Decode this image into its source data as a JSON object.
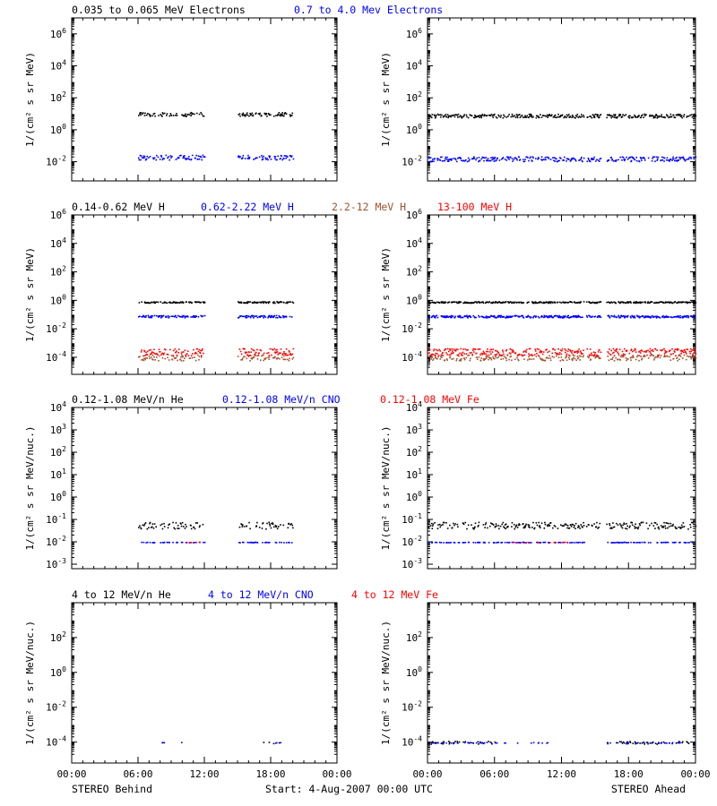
{
  "colors": {
    "black": "#000000",
    "blue": "#0000ff",
    "brown": "#a0522d",
    "red": "#ff0000"
  },
  "footer": {
    "left": "STEREO Behind",
    "center": "Start:  4-Aug-2007 00:00 UTC",
    "right": "STEREO Ahead"
  },
  "x_ticks": [
    "00:00",
    "06:00",
    "12:00",
    "18:00",
    "00:00"
  ],
  "chart_data": [
    {
      "type": "scatter",
      "row": 0,
      "side": "behind",
      "log": true,
      "ylim": [
        -3.2,
        7
      ],
      "ylabel": "1/(cm² s sr MeV)",
      "yticks": [
        {
          "e": -2,
          "label": "10^-2"
        },
        {
          "e": 0,
          "label": "10^0"
        },
        {
          "e": 2,
          "label": "10^2"
        },
        {
          "e": 4,
          "label": "10^4"
        },
        {
          "e": 6,
          "label": "10^6"
        }
      ],
      "legend": [
        {
          "text": "0.035 to 0.065 MeV Electrons",
          "color": "black"
        },
        {
          "text": "0.7 to 4.0 Mev Electrons",
          "color": "blue"
        }
      ],
      "series": [
        {
          "color": "black",
          "level": 1.0,
          "spread": 0.12,
          "spans": [
            [
              6.0,
              12.0
            ],
            [
              15.0,
              20.0
            ]
          ],
          "density": 0.5
        },
        {
          "color": "blue",
          "level": -1.7,
          "spread": 0.15,
          "spans": [
            [
              6.0,
              12.0
            ],
            [
              15.0,
              20.0
            ]
          ],
          "density": 0.5
        }
      ]
    },
    {
      "type": "scatter",
      "row": 0,
      "side": "ahead",
      "log": true,
      "ylim": [
        -3.2,
        7
      ],
      "ylabel": "1/(cm² s sr MeV)",
      "yticks": [
        {
          "e": -2,
          "label": "10^-2"
        },
        {
          "e": 0,
          "label": "10^0"
        },
        {
          "e": 2,
          "label": "10^2"
        },
        {
          "e": 4,
          "label": "10^4"
        },
        {
          "e": 6,
          "label": "10^6"
        }
      ],
      "legend": [],
      "series": [
        {
          "color": "black",
          "level": 0.9,
          "spread": 0.12,
          "spans": [
            [
              0.0,
              14.0
            ],
            [
              14.2,
              15.5
            ],
            [
              16.0,
              24.0
            ]
          ],
          "density": 0.6
        },
        {
          "color": "blue",
          "level": -1.8,
          "spread": 0.15,
          "spans": [
            [
              0.0,
              14.0
            ],
            [
              14.2,
              15.5
            ],
            [
              16.0,
              24.0
            ]
          ],
          "density": 0.6
        }
      ]
    },
    {
      "type": "scatter",
      "row": 1,
      "side": "behind",
      "log": true,
      "ylim": [
        -5.2,
        6
      ],
      "ylabel": "1/(cm² s sr MeV)",
      "yticks": [
        {
          "e": -4,
          "label": "10^-4"
        },
        {
          "e": -2,
          "label": "10^-2"
        },
        {
          "e": 0,
          "label": "10^0"
        },
        {
          "e": 2,
          "label": "10^2"
        },
        {
          "e": 4,
          "label": "10^4"
        },
        {
          "e": 6,
          "label": "10^6"
        }
      ],
      "legend": [
        {
          "text": "0.14-0.62 MeV H",
          "color": "black"
        },
        {
          "text": "0.62-2.22 MeV H",
          "color": "blue"
        },
        {
          "text": "2.2-12 MeV H",
          "color": "brown"
        },
        {
          "text": "13-100 MeV H",
          "color": "red"
        }
      ],
      "series": [
        {
          "color": "black",
          "level": -0.1,
          "spread": 0.05,
          "spans": [
            [
              6.0,
              12.0
            ],
            [
              15.0,
              20.0
            ]
          ],
          "density": 0.55
        },
        {
          "color": "blue",
          "level": -1.1,
          "spread": 0.08,
          "spans": [
            [
              6.0,
              12.0
            ],
            [
              15.0,
              20.0
            ]
          ],
          "density": 0.55
        },
        {
          "color": "brown",
          "level": -4.0,
          "spread": 0.2,
          "spans": [
            [
              6.0,
              12.0
            ],
            [
              15.0,
              20.0
            ]
          ],
          "density": 0.4
        },
        {
          "color": "red",
          "level": -3.6,
          "spread": 0.25,
          "spans": [
            [
              6.0,
              12.0
            ],
            [
              15.0,
              20.0
            ]
          ],
          "density": 0.55
        }
      ]
    },
    {
      "type": "scatter",
      "row": 1,
      "side": "ahead",
      "log": true,
      "ylim": [
        -5.2,
        6
      ],
      "ylabel": "1/(cm² s sr MeV)",
      "yticks": [
        {
          "e": -4,
          "label": "10^-4"
        },
        {
          "e": -2,
          "label": "10^-2"
        },
        {
          "e": 0,
          "label": "10^0"
        },
        {
          "e": 2,
          "label": "10^2"
        },
        {
          "e": 4,
          "label": "10^4"
        },
        {
          "e": 6,
          "label": "10^6"
        }
      ],
      "legend": [],
      "series": [
        {
          "color": "black",
          "level": -0.1,
          "spread": 0.05,
          "spans": [
            [
              0.0,
              14.0
            ],
            [
              14.2,
              15.5
            ],
            [
              16.0,
              24.0
            ]
          ],
          "density": 0.65
        },
        {
          "color": "blue",
          "level": -1.1,
          "spread": 0.08,
          "spans": [
            [
              0.0,
              14.0
            ],
            [
              14.2,
              15.5
            ],
            [
              16.0,
              24.0
            ]
          ],
          "density": 0.65
        },
        {
          "color": "brown",
          "level": -4.0,
          "spread": 0.2,
          "spans": [
            [
              0.0,
              14.0
            ],
            [
              14.2,
              15.5
            ],
            [
              16.0,
              24.0
            ]
          ],
          "density": 0.45
        },
        {
          "color": "red",
          "level": -3.6,
          "spread": 0.25,
          "spans": [
            [
              0.0,
              14.0
            ],
            [
              14.2,
              15.5
            ],
            [
              16.0,
              24.0
            ]
          ],
          "density": 0.6
        }
      ]
    },
    {
      "type": "scatter",
      "row": 2,
      "side": "behind",
      "log": true,
      "ylim": [
        -3.2,
        4
      ],
      "ylabel": "1/(cm² s sr MeV/nuc.)",
      "yticks": [
        {
          "e": -3,
          "label": "10^-3"
        },
        {
          "e": -2,
          "label": "10^-2"
        },
        {
          "e": -1,
          "label": "10^-1"
        },
        {
          "e": 0,
          "label": "10^0"
        },
        {
          "e": 1,
          "label": "10^1"
        },
        {
          "e": 2,
          "label": "10^2"
        },
        {
          "e": 3,
          "label": "10^3"
        },
        {
          "e": 4,
          "label": "10^4"
        }
      ],
      "legend": [
        {
          "text": "0.12-1.08 MeV/n He",
          "color": "black"
        },
        {
          "text": "0.12-1.08 MeV/n CNO",
          "color": "blue"
        },
        {
          "text": "0.12-1.08 MeV Fe",
          "color": "red"
        }
      ],
      "series": [
        {
          "color": "black",
          "level": -1.25,
          "spread": 0.15,
          "spans": [
            [
              6.0,
              12.0
            ],
            [
              15.0,
              20.0
            ]
          ],
          "density": 0.4
        },
        {
          "color": "blue",
          "level": -2.0,
          "spread": 0.01,
          "spans": [
            [
              6.0,
              12.0
            ],
            [
              15.0,
              20.0
            ]
          ],
          "density": 0.3
        },
        {
          "color": "red",
          "level": -2.0,
          "spread": 0.01,
          "spans": [
            [
              10.0,
              11.5
            ]
          ],
          "density": 0.2
        }
      ]
    },
    {
      "type": "scatter",
      "row": 2,
      "side": "ahead",
      "log": true,
      "ylim": [
        -3.2,
        4
      ],
      "ylabel": "1/(cm² s sr MeV/nuc.)",
      "yticks": [
        {
          "e": -3,
          "label": "10^-3"
        },
        {
          "e": -2,
          "label": "10^-2"
        },
        {
          "e": -1,
          "label": "10^-1"
        },
        {
          "e": 0,
          "label": "10^0"
        },
        {
          "e": 1,
          "label": "10^1"
        },
        {
          "e": 2,
          "label": "10^2"
        },
        {
          "e": 3,
          "label": "10^3"
        },
        {
          "e": 4,
          "label": "10^4"
        }
      ],
      "legend": [],
      "series": [
        {
          "color": "black",
          "level": -1.25,
          "spread": 0.15,
          "spans": [
            [
              0.0,
              14.0
            ],
            [
              14.2,
              15.5
            ],
            [
              16.0,
              24.0
            ]
          ],
          "density": 0.45
        },
        {
          "color": "blue",
          "level": -2.0,
          "spread": 0.01,
          "spans": [
            [
              0.0,
              14.0
            ],
            [
              16.0,
              24.0
            ]
          ],
          "density": 0.3
        },
        {
          "color": "red",
          "level": -2.0,
          "spread": 0.01,
          "spans": [
            [
              7.5,
              12.5
            ]
          ],
          "density": 0.15
        }
      ]
    },
    {
      "type": "scatter",
      "row": 3,
      "side": "behind",
      "log": true,
      "ylim": [
        -5.2,
        4
      ],
      "ylabel": "1/(cm² s sr MeV/nuc.)",
      "yticks": [
        {
          "e": -4,
          "label": "10^-4"
        },
        {
          "e": -2,
          "label": "10^-2"
        },
        {
          "e": 0,
          "label": "10^0"
        },
        {
          "e": 2,
          "label": "10^2"
        }
      ],
      "legend": [
        {
          "text": "4 to 12 MeV/n He",
          "color": "black"
        },
        {
          "text": "4 to 12 MeV/n CNO",
          "color": "blue"
        },
        {
          "text": "4 to 12 MeV Fe",
          "color": "red"
        }
      ],
      "series": [
        {
          "color": "black",
          "level": -4.0,
          "spread": 0.05,
          "spans": [
            [
              17.0,
              20.0
            ]
          ],
          "density": 0.08
        },
        {
          "color": "blue",
          "level": -4.0,
          "spread": 0.02,
          "spans": [
            [
              8.0,
              10.5
            ],
            [
              17.0,
              19.0
            ]
          ],
          "density": 0.1
        }
      ]
    },
    {
      "type": "scatter",
      "row": 3,
      "side": "ahead",
      "log": true,
      "ylim": [
        -5.2,
        4
      ],
      "ylabel": "1/(cm² s sr MeV/nuc.)",
      "yticks": [
        {
          "e": -4,
          "label": "10^-4"
        },
        {
          "e": -2,
          "label": "10^-2"
        },
        {
          "e": 0,
          "label": "10^0"
        },
        {
          "e": 2,
          "label": "10^2"
        }
      ],
      "legend": [],
      "series": [
        {
          "color": "black",
          "level": -4.0,
          "spread": 0.08,
          "spans": [
            [
              0.0,
              6.0
            ],
            [
              16.0,
              24.0
            ]
          ],
          "density": 0.2
        },
        {
          "color": "blue",
          "level": -4.0,
          "spread": 0.02,
          "spans": [
            [
              0.0,
              12.0
            ],
            [
              16.0,
              24.0
            ]
          ],
          "density": 0.15
        }
      ]
    }
  ]
}
